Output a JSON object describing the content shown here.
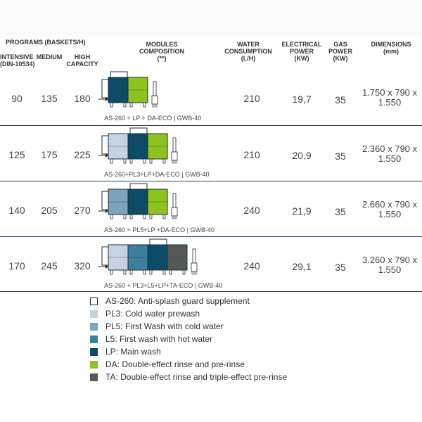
{
  "headers": {
    "programs": "PROGRAMS (BASKETS/H)",
    "intensive": "INTENSIVE",
    "intensive_sub": "(DIN-10534)",
    "medium": "MEDIUM",
    "high_l1": "HIGH",
    "high_l2": "CAPACITY",
    "modules_l1": "MODULES",
    "modules_l2": "COMPOSITION",
    "modules_l3": "(**)",
    "water_l1": "WATER",
    "water_l2": "CONSUMPTION",
    "water_l3": "(L/H)",
    "elec_l1": "ELECTRICAL",
    "elec_l2": "POWER",
    "elec_l3": "(KW)",
    "gas_l1": "GAS",
    "gas_l2": "POWER",
    "gas_l3": "(KW)",
    "dim_l1": "DIMENSIONS",
    "dim_l2": "(mm)"
  },
  "rows": [
    {
      "intensive": "90",
      "medium": "135",
      "high": "180",
      "caption": "AS-260 + LP + DA-ECO | GWB-40",
      "water": "210",
      "electrical": "19,7",
      "gas": "35",
      "dim_l1": "1.750 x 790 x",
      "dim_l2": "1.550",
      "modules": [
        "LP",
        "DA"
      ]
    },
    {
      "intensive": "125",
      "medium": "175",
      "high": "225",
      "caption": "AS-260+PL3+LP+DA-ECO | GWB-40",
      "water": "210",
      "electrical": "20,9",
      "gas": "35",
      "dim_l1": "2.360 x 790 x",
      "dim_l2": "1.550",
      "modules": [
        "PL3",
        "LP",
        "DA"
      ]
    },
    {
      "intensive": "140",
      "medium": "205",
      "high": "270",
      "caption": "AS-260 + PL5+LP +DA-ECO | GWB-40",
      "water": "240",
      "electrical": "21,9",
      "gas": "35",
      "dim_l1": "2.660 x 790 x",
      "dim_l2": "1.550",
      "modules": [
        "PL5",
        "LP",
        "DA"
      ]
    },
    {
      "intensive": "170",
      "medium": "245",
      "high": "320",
      "caption": "AS-260 + PL3+L5+LP+TA-ECO | GWB-40",
      "water": "240",
      "electrical": "29,1",
      "gas": "35",
      "dim_l1": "3.260 x 790 x",
      "dim_l2": "1.550",
      "modules": [
        "PL3",
        "L5",
        "LP",
        "TA"
      ]
    }
  ],
  "colors": {
    "AS-260": "#ffffff",
    "PL3": "#c3d3e2",
    "PL5": "#7da3bd",
    "L5": "#3a7f9c",
    "LP": "#0e4b66",
    "DA": "#8dc21f",
    "TA": "#555a56",
    "separator": "#1e3f56"
  },
  "legend": [
    {
      "code": "AS-260",
      "label": "AS-260: Anti-splash guard supplement"
    },
    {
      "code": "PL3",
      "label": "PL3: Cold water prewash"
    },
    {
      "code": "PL5",
      "label": "PL5: First Wash with cold water"
    },
    {
      "code": "L5",
      "label": "L5: First wash with hot water"
    },
    {
      "code": "LP",
      "label": "LP: Main wash"
    },
    {
      "code": "DA",
      "label": "DA: Double-effect rinse and pre-rinse"
    },
    {
      "code": "TA",
      "label": "TA: Double-effect rinse and triple-effect pre-rinse"
    }
  ]
}
